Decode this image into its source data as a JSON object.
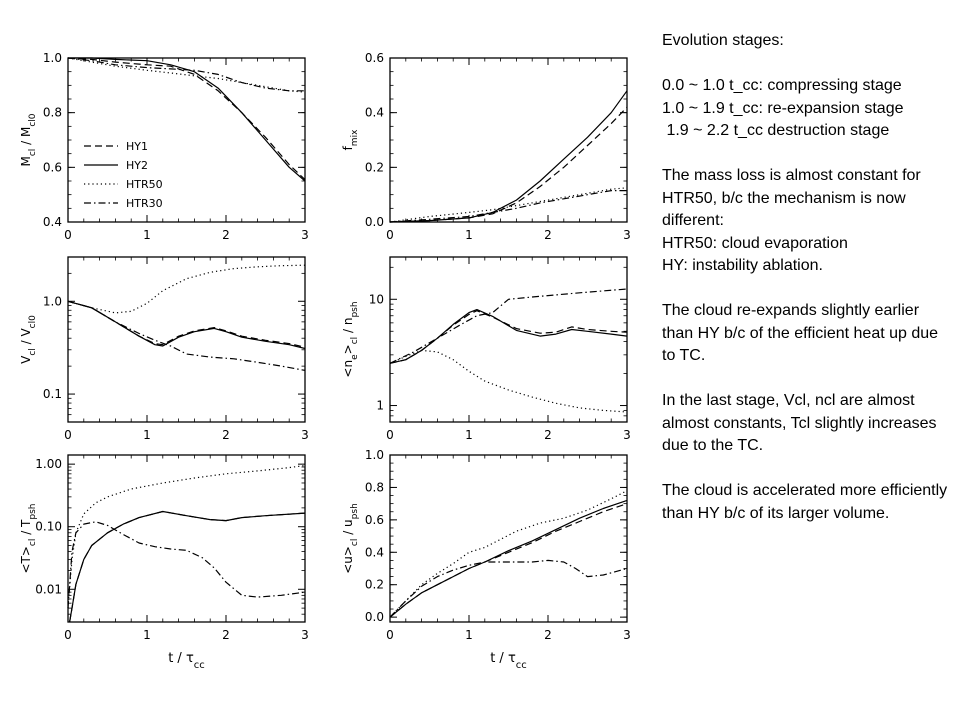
{
  "notes": {
    "heading": "Evolution stages:",
    "stage1": "0.0 ~ 1.0 t_cc: compressing stage",
    "stage2": "1.0 ~ 1.9 t_cc: re-expansion stage",
    "stage3": " 1.9 ~ 2.2 t_cc destruction stage",
    "p_massloss": "The mass loss is almost constant for HTR50, b/c the mechanism is now different:",
    "p_htr50": "HTR50: cloud evaporation",
    "p_hy": "HY: instability ablation.",
    "p_reexpand": "The cloud re-expands slightly earlier than HY b/c of the efficient heat up due to TC.",
    "p_last": "In the last stage, Vcl, ncl are almost almost constants, Tcl slightly increases due to the TC.",
    "p_accel": "The cloud is accelerated more efficiently than HY b/c of its larger volume."
  },
  "chart_data": [
    {
      "id": "mass",
      "type": "line",
      "xlabel": "",
      "ylabel": "M_cl / M_cl0",
      "xlim": [
        0,
        3
      ],
      "ylim": [
        0.4,
        1.0
      ],
      "scale": "linear",
      "xticks": [
        0,
        1,
        2,
        3
      ],
      "yticks": [
        0.4,
        0.6,
        0.8,
        1.0
      ],
      "ytick_labels": [
        "0.4",
        "0.6",
        "0.8",
        "1.0"
      ],
      "legend": [
        "HY1",
        "HY2",
        "HTR50",
        "HTR30"
      ],
      "series": [
        {
          "name": "HY1",
          "x": [
            0,
            0.3,
            0.6,
            1.0,
            1.3,
            1.6,
            1.9,
            2.2,
            2.5,
            2.8,
            3.0
          ],
          "y": [
            1.0,
            0.995,
            0.985,
            0.975,
            0.97,
            0.94,
            0.88,
            0.8,
            0.71,
            0.61,
            0.555
          ]
        },
        {
          "name": "HY2",
          "x": [
            0,
            0.3,
            0.6,
            1.0,
            1.3,
            1.6,
            1.9,
            2.2,
            2.5,
            2.8,
            3.0
          ],
          "y": [
            1.0,
            1.0,
            0.995,
            0.99,
            0.975,
            0.95,
            0.89,
            0.8,
            0.7,
            0.6,
            0.55
          ]
        },
        {
          "name": "HTR50",
          "x": [
            0,
            0.3,
            0.6,
            1.0,
            1.3,
            1.6,
            1.9,
            2.2,
            2.5,
            2.8,
            3.0
          ],
          "y": [
            1.0,
            0.985,
            0.97,
            0.955,
            0.945,
            0.935,
            0.925,
            0.91,
            0.895,
            0.88,
            0.875
          ]
        },
        {
          "name": "HTR30",
          "x": [
            0,
            0.3,
            0.6,
            1.0,
            1.3,
            1.6,
            1.9,
            2.2,
            2.5,
            2.8,
            3.0
          ],
          "y": [
            1.0,
            0.99,
            0.975,
            0.965,
            0.96,
            0.955,
            0.94,
            0.91,
            0.89,
            0.88,
            0.88
          ]
        }
      ]
    },
    {
      "id": "fmix",
      "type": "line",
      "xlabel": "",
      "ylabel": "f_mix",
      "xlim": [
        0,
        3
      ],
      "ylim": [
        0,
        0.6
      ],
      "scale": "linear",
      "xticks": [
        0,
        1,
        2,
        3
      ],
      "yticks": [
        0.0,
        0.2,
        0.4,
        0.6
      ],
      "ytick_labels": [
        "0.0",
        "0.2",
        "0.4",
        "0.6"
      ],
      "series": [
        {
          "name": "HY1",
          "x": [
            0,
            0.5,
            1.0,
            1.3,
            1.6,
            1.9,
            2.2,
            2.5,
            2.8,
            3.0
          ],
          "y": [
            0.0,
            0.005,
            0.015,
            0.03,
            0.07,
            0.13,
            0.2,
            0.28,
            0.36,
            0.42
          ]
        },
        {
          "name": "HY2",
          "x": [
            0,
            0.5,
            1.0,
            1.3,
            1.6,
            1.9,
            2.2,
            2.5,
            2.8,
            3.0
          ],
          "y": [
            0.0,
            0.005,
            0.015,
            0.035,
            0.08,
            0.15,
            0.23,
            0.31,
            0.4,
            0.48
          ]
        },
        {
          "name": "HTR50",
          "x": [
            0,
            0.5,
            1.0,
            1.3,
            1.6,
            1.9,
            2.2,
            2.5,
            2.8,
            3.0
          ],
          "y": [
            0.0,
            0.02,
            0.035,
            0.045,
            0.06,
            0.075,
            0.09,
            0.105,
            0.12,
            0.125
          ]
        },
        {
          "name": "HTR30",
          "x": [
            0,
            0.5,
            1.0,
            1.3,
            1.6,
            1.9,
            2.2,
            2.5,
            2.8,
            3.0
          ],
          "y": [
            0.0,
            0.01,
            0.02,
            0.035,
            0.05,
            0.07,
            0.085,
            0.1,
            0.115,
            0.115
          ]
        }
      ]
    },
    {
      "id": "volume",
      "type": "line",
      "xlabel": "",
      "ylabel": "V_cl / V_cl0",
      "xlim": [
        0,
        3
      ],
      "ylim": [
        0.05,
        3.0
      ],
      "scale": "log",
      "xticks": [
        0,
        1,
        2,
        3
      ],
      "yticks": [
        0.1,
        1.0
      ],
      "ytick_labels": [
        "0.1",
        "1.0"
      ],
      "series": [
        {
          "name": "HY1",
          "x": [
            0,
            0.3,
            0.6,
            0.9,
            1.1,
            1.2,
            1.4,
            1.6,
            1.85,
            2.0,
            2.2,
            2.5,
            2.8,
            3.0
          ],
          "y": [
            1.0,
            0.85,
            0.6,
            0.42,
            0.35,
            0.34,
            0.42,
            0.48,
            0.52,
            0.48,
            0.42,
            0.38,
            0.35,
            0.32
          ]
        },
        {
          "name": "HY2",
          "x": [
            0,
            0.3,
            0.6,
            0.9,
            1.1,
            1.2,
            1.4,
            1.6,
            1.85,
            2.0,
            2.2,
            2.5,
            2.8,
            3.0
          ],
          "y": [
            1.0,
            0.85,
            0.6,
            0.42,
            0.34,
            0.33,
            0.41,
            0.47,
            0.51,
            0.47,
            0.41,
            0.37,
            0.34,
            0.31
          ]
        },
        {
          "name": "HTR50",
          "x": [
            0,
            0.3,
            0.6,
            0.8,
            1.0,
            1.2,
            1.5,
            1.8,
            2.1,
            2.4,
            2.7,
            3.0
          ],
          "y": [
            1.0,
            0.85,
            0.75,
            0.78,
            0.95,
            1.3,
            1.75,
            2.05,
            2.25,
            2.35,
            2.42,
            2.45
          ]
        },
        {
          "name": "HTR30",
          "x": [
            0,
            0.3,
            0.6,
            0.9,
            1.1,
            1.3,
            1.5,
            1.8,
            2.1,
            2.4,
            2.7,
            3.0
          ],
          "y": [
            1.0,
            0.85,
            0.6,
            0.45,
            0.38,
            0.33,
            0.27,
            0.25,
            0.24,
            0.22,
            0.2,
            0.18
          ]
        }
      ]
    },
    {
      "id": "density",
      "type": "line",
      "xlabel": "",
      "ylabel": "<n_e>_cl / n_psh",
      "xlim": [
        0,
        3
      ],
      "ylim": [
        0.7,
        25
      ],
      "scale": "log",
      "xticks": [
        0,
        1,
        2,
        3
      ],
      "yticks": [
        1,
        10
      ],
      "ytick_labels": [
        "1",
        "10"
      ],
      "series": [
        {
          "name": "HY1",
          "x": [
            0,
            0.2,
            0.4,
            0.6,
            0.8,
            1.0,
            1.1,
            1.3,
            1.6,
            1.9,
            2.1,
            2.3,
            2.5,
            2.8,
            3.0
          ],
          "y": [
            2.5,
            2.7,
            3.3,
            4.3,
            5.7,
            7.2,
            7.8,
            6.8,
            5.3,
            4.8,
            4.9,
            5.5,
            5.2,
            5.0,
            4.9
          ]
        },
        {
          "name": "HY2",
          "x": [
            0,
            0.2,
            0.4,
            0.6,
            0.8,
            1.0,
            1.1,
            1.3,
            1.6,
            1.9,
            2.1,
            2.3,
            2.5,
            2.8,
            3.0
          ],
          "y": [
            2.5,
            2.7,
            3.3,
            4.3,
            5.8,
            7.5,
            8.0,
            6.9,
            5.1,
            4.5,
            4.7,
            5.2,
            5.0,
            4.7,
            4.5
          ]
        },
        {
          "name": "HTR50",
          "x": [
            0,
            0.2,
            0.4,
            0.6,
            0.8,
            1.0,
            1.2,
            1.5,
            1.8,
            2.1,
            2.4,
            2.7,
            3.0
          ],
          "y": [
            2.5,
            2.9,
            3.3,
            3.2,
            2.7,
            2.1,
            1.7,
            1.4,
            1.2,
            1.05,
            0.95,
            0.9,
            0.87
          ]
        },
        {
          "name": "HTR30",
          "x": [
            0,
            0.3,
            0.6,
            0.9,
            1.1,
            1.3,
            1.5,
            1.8,
            2.1,
            2.4,
            2.7,
            3.0
          ],
          "y": [
            2.5,
            3.2,
            4.3,
            5.8,
            7.0,
            7.5,
            10.0,
            10.5,
            11.0,
            11.5,
            12.0,
            12.5
          ]
        }
      ]
    },
    {
      "id": "temperature",
      "type": "line",
      "xlabel": "t / τ_cc",
      "ylabel": "<T>_cl / T_psh",
      "xlim": [
        0,
        3
      ],
      "ylim": [
        0.003,
        1.4
      ],
      "scale": "log",
      "xticks": [
        0,
        1,
        2,
        3
      ],
      "yticks": [
        0.01,
        0.1,
        1.0
      ],
      "ytick_labels": [
        "0.01",
        "0.10",
        "1.00"
      ],
      "series": [
        {
          "name": "HY1",
          "x": [
            0.02,
            0.05,
            0.1,
            0.2,
            0.3,
            0.5,
            0.7,
            0.9,
            1.2,
            1.5,
            1.8,
            2.0,
            2.2,
            2.5,
            3.0
          ],
          "y": [
            0.003,
            0.005,
            0.012,
            0.03,
            0.05,
            0.08,
            0.11,
            0.14,
            0.175,
            0.15,
            0.13,
            0.125,
            0.14,
            0.15,
            0.165
          ]
        },
        {
          "name": "HY2",
          "x": [
            0.02,
            0.05,
            0.1,
            0.2,
            0.3,
            0.5,
            0.7,
            0.9,
            1.2,
            1.5,
            1.8,
            2.0,
            2.2,
            2.5,
            3.0
          ],
          "y": [
            0.003,
            0.005,
            0.012,
            0.03,
            0.05,
            0.08,
            0.11,
            0.14,
            0.175,
            0.15,
            0.13,
            0.125,
            0.14,
            0.15,
            0.165
          ]
        },
        {
          "name": "HTR50",
          "x": [
            0.0,
            0.05,
            0.1,
            0.2,
            0.35,
            0.5,
            0.8,
            1.2,
            1.6,
            2.0,
            2.4,
            2.8,
            3.0
          ],
          "y": [
            0.005,
            0.03,
            0.08,
            0.16,
            0.24,
            0.3,
            0.4,
            0.5,
            0.6,
            0.7,
            0.78,
            0.88,
            0.95
          ]
        },
        {
          "name": "HTR30",
          "x": [
            0.0,
            0.05,
            0.1,
            0.2,
            0.35,
            0.5,
            0.7,
            0.9,
            1.1,
            1.3,
            1.5,
            1.7,
            1.85,
            2.0,
            2.2,
            2.4,
            2.7,
            3.0
          ],
          "y": [
            0.005,
            0.04,
            0.08,
            0.11,
            0.12,
            0.105,
            0.075,
            0.055,
            0.048,
            0.044,
            0.042,
            0.032,
            0.022,
            0.013,
            0.008,
            0.0075,
            0.008,
            0.009
          ]
        }
      ]
    },
    {
      "id": "velocity",
      "type": "line",
      "xlabel": "t / τ_cc",
      "ylabel": "<u>_cl / u_psh",
      "xlim": [
        0,
        3
      ],
      "ylim": [
        -0.03,
        1.0
      ],
      "scale": "linear",
      "xticks": [
        0,
        1,
        2,
        3
      ],
      "yticks": [
        0.0,
        0.2,
        0.4,
        0.6,
        0.8,
        1.0
      ],
      "ytick_labels": [
        "0.0",
        "0.2",
        "0.4",
        "0.6",
        "0.8",
        "1.0"
      ],
      "series": [
        {
          "name": "HY1",
          "x": [
            0,
            0.2,
            0.4,
            0.6,
            0.8,
            1.0,
            1.2,
            1.5,
            1.8,
            2.1,
            2.4,
            2.7,
            3.0
          ],
          "y": [
            0.0,
            0.08,
            0.15,
            0.2,
            0.25,
            0.3,
            0.34,
            0.4,
            0.46,
            0.53,
            0.59,
            0.65,
            0.7
          ]
        },
        {
          "name": "HY2",
          "x": [
            0,
            0.2,
            0.4,
            0.6,
            0.8,
            1.0,
            1.2,
            1.5,
            1.8,
            2.1,
            2.4,
            2.7,
            3.0
          ],
          "y": [
            0.0,
            0.08,
            0.15,
            0.2,
            0.25,
            0.3,
            0.34,
            0.41,
            0.47,
            0.54,
            0.61,
            0.67,
            0.72
          ]
        },
        {
          "name": "HTR50",
          "x": [
            0,
            0.2,
            0.4,
            0.6,
            0.8,
            1.0,
            1.2,
            1.4,
            1.6,
            1.9,
            2.2,
            2.5,
            2.8,
            3.0
          ],
          "y": [
            0.0,
            0.1,
            0.2,
            0.27,
            0.33,
            0.4,
            0.43,
            0.48,
            0.53,
            0.58,
            0.61,
            0.66,
            0.73,
            0.78
          ]
        },
        {
          "name": "HTR30",
          "x": [
            0,
            0.2,
            0.4,
            0.6,
            0.8,
            1.0,
            1.2,
            1.5,
            1.8,
            2.0,
            2.2,
            2.35,
            2.5,
            2.7,
            3.0
          ],
          "y": [
            0.0,
            0.1,
            0.19,
            0.25,
            0.29,
            0.32,
            0.34,
            0.34,
            0.34,
            0.35,
            0.34,
            0.3,
            0.25,
            0.26,
            0.3
          ]
        }
      ]
    }
  ]
}
